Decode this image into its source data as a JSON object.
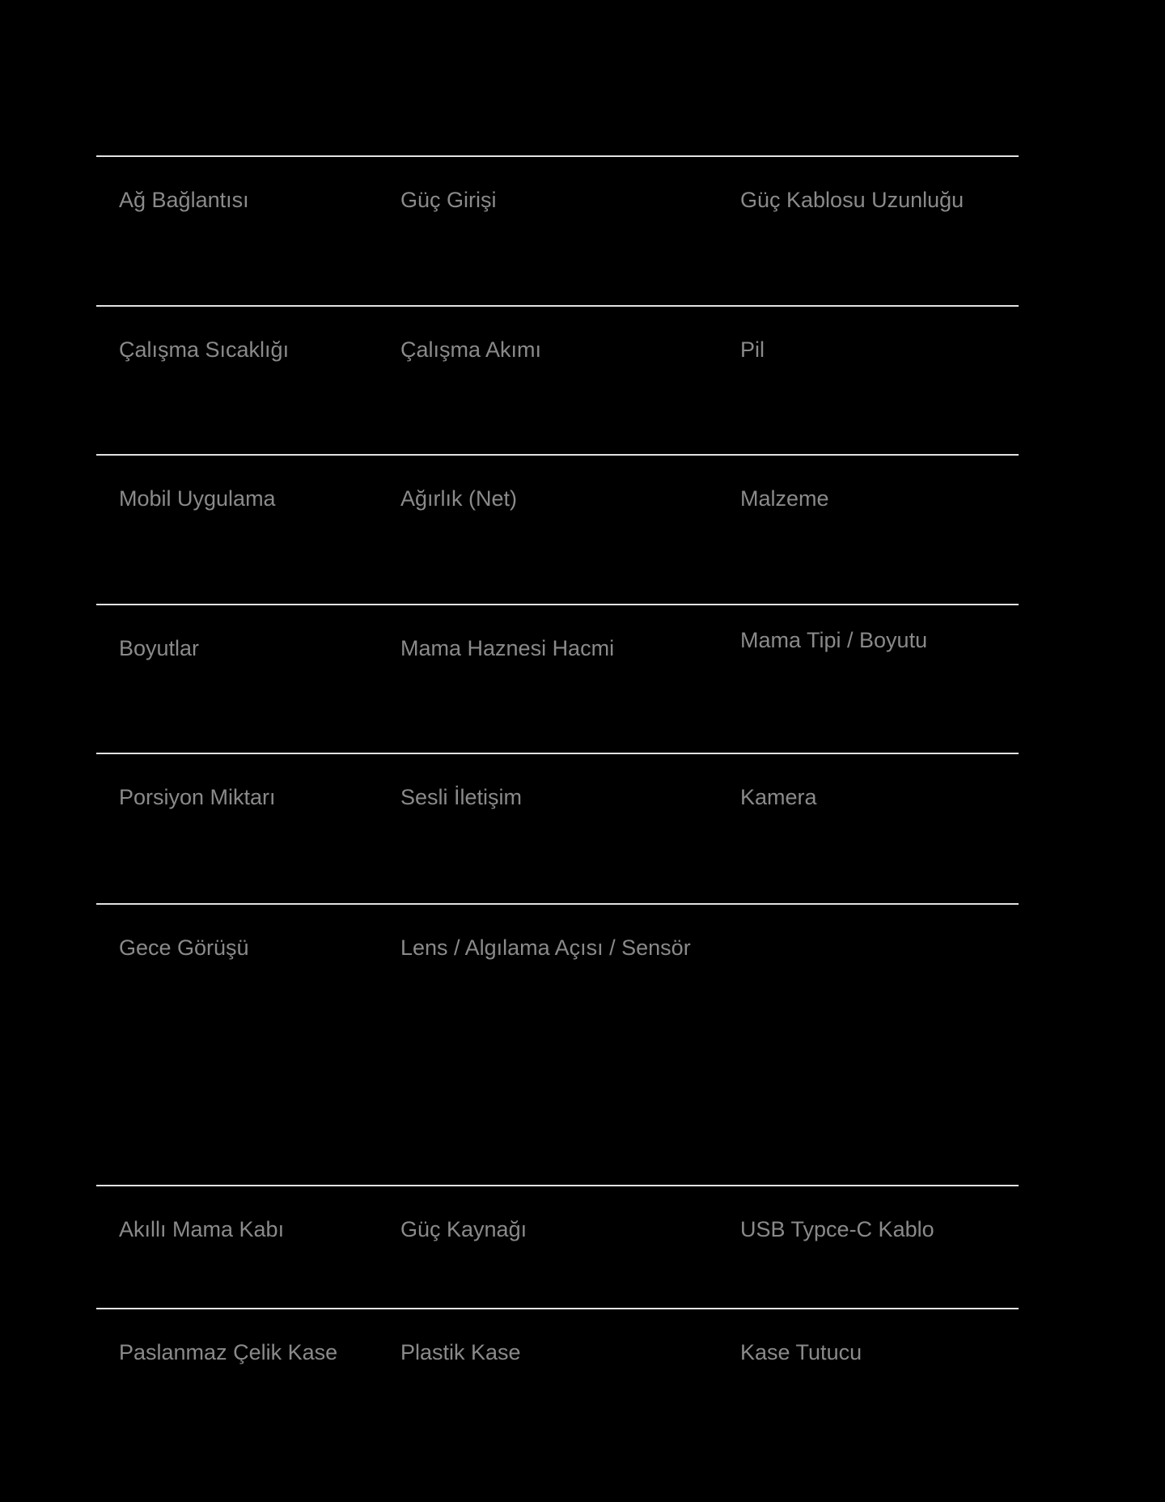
{
  "page": {
    "background_color": "#000000",
    "divider_color": "#e2e2e2",
    "label_color": "#8a8a8a"
  },
  "table": {
    "rows": [
      {
        "cells": [
          "Ağ Bağlantısı",
          "Güç Girişi",
          "Güç Kablosu Uzunluğu"
        ]
      },
      {
        "cells": [
          "Çalışma Sıcaklığı",
          "Çalışma Akımı",
          "Pil"
        ]
      },
      {
        "cells": [
          "Mobil Uygulama",
          "Ağırlık (Net)",
          "Malzeme"
        ]
      },
      {
        "cells": [
          "Boyutlar",
          "Mama Haznesi Hacmi",
          "Mama Tipi / Boyutu"
        ]
      },
      {
        "cells": [
          "Porsiyon Miktarı",
          "Sesli İletişim",
          "Kamera"
        ]
      },
      {
        "cells": [
          "Gece Görüşü",
          "Lens / Algılama Açısı / Sensör",
          ""
        ]
      },
      {
        "cells": [
          "Akıllı Mama Kabı",
          "Güç Kaynağı",
          "USB Typce-C Kablo"
        ]
      },
      {
        "cells": [
          "Paslanmaz Çelik Kase",
          "Plastik Kase",
          "Kase Tutucu"
        ]
      }
    ]
  }
}
